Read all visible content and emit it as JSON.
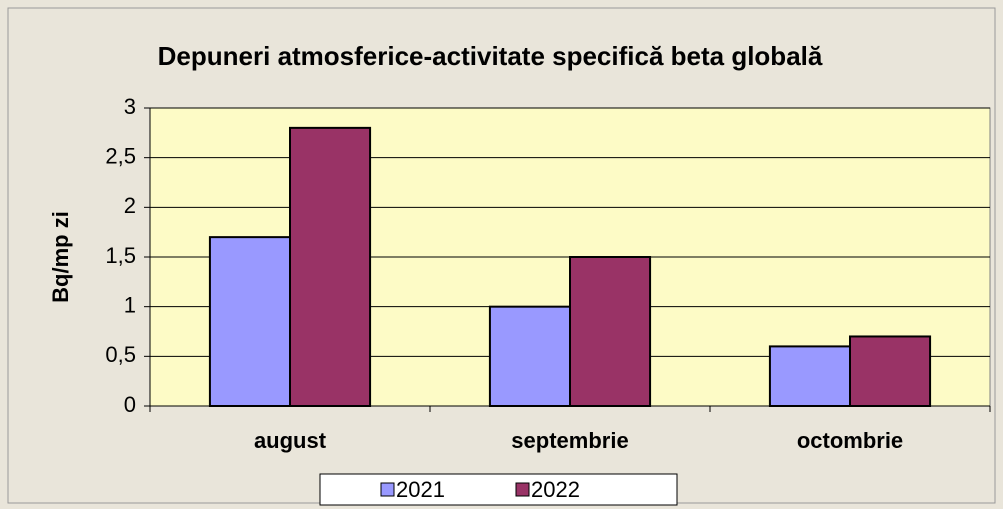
{
  "chart_data": {
    "type": "bar",
    "title": "Depuneri atmosferice-activitate specifică beta globală",
    "y_label": "Bq/mp zi",
    "categories": [
      "august",
      "septembrie",
      "octombrie"
    ],
    "series": [
      {
        "name": "2021",
        "color": "#9999ff",
        "values": [
          1.7,
          1.0,
          0.6
        ]
      },
      {
        "name": "2022",
        "color": "#993366",
        "values": [
          2.8,
          1.5,
          0.7
        ]
      }
    ],
    "ylim": [
      0,
      3
    ],
    "yticks": [
      0,
      {
        "value": 0.5,
        "label": "0,5"
      },
      1,
      {
        "value": 1.5,
        "label": "1,5"
      },
      2,
      {
        "value": 2.5,
        "label": "2,5"
      },
      3
    ],
    "grid": true,
    "legend": "bottom"
  }
}
